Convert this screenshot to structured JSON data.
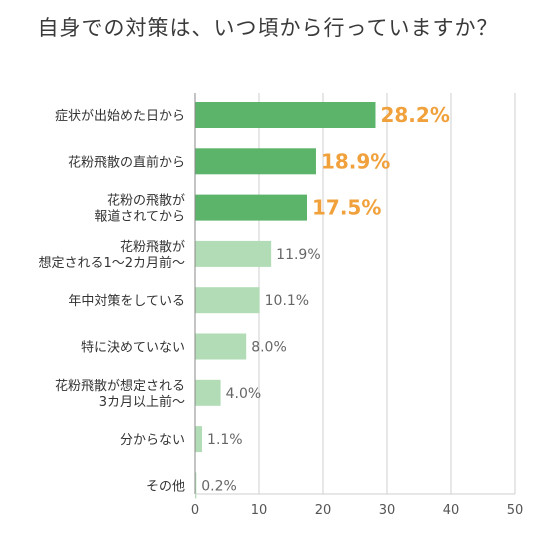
{
  "chart_data": {
    "type": "bar",
    "orientation": "horizontal",
    "title": "自身での対策は、いつ頃から行っていますか？",
    "categories": [
      [
        "症状が出始めた日から"
      ],
      [
        "花粉飛散の直前から"
      ],
      [
        "花粉の飛散が",
        "報道されてから"
      ],
      [
        "花粉飛散が",
        "想定される1〜2カ月前〜"
      ],
      [
        "年中対策をしている"
      ],
      [
        "特に決めていない"
      ],
      [
        "花粉飛散が想定される",
        "3カ月以上前〜"
      ],
      [
        "分からない"
      ],
      [
        "その他"
      ]
    ],
    "values": [
      28.2,
      18.9,
      17.5,
      11.9,
      10.1,
      8.0,
      4.0,
      1.1,
      0.2
    ],
    "value_labels": [
      "28.2%",
      "18.9%",
      "17.5%",
      "11.9%",
      "10.1%",
      "8.0%",
      "4.0%",
      "1.1%",
      "0.2%"
    ],
    "highlight_count": 3,
    "xlim": [
      0,
      50
    ],
    "xticks": [
      0,
      10,
      20,
      30,
      40,
      50
    ],
    "grid": true,
    "colors": {
      "bar_highlight": "#5cb46a",
      "bar_normal": "#b2dcb6",
      "label_highlight": "#f0a13c",
      "label_normal": "#666666",
      "grid": "#cfcfcf",
      "axis": "#888888"
    }
  }
}
